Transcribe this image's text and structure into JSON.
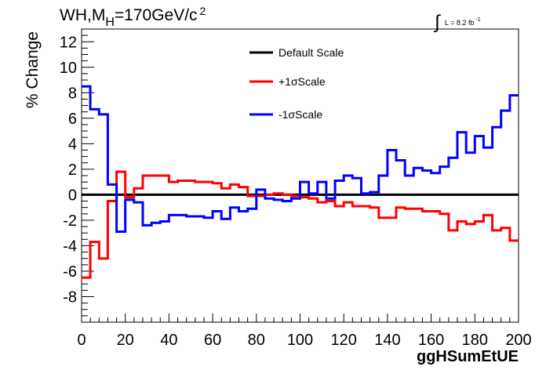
{
  "chart_data": {
    "type": "line",
    "title_parts": {
      "main": "WH,M",
      "sub": "H",
      "rest": "=170GeV/c",
      "sup": "2"
    },
    "lumi_label": "L = 8.2 fb",
    "lumi_sup": "-1",
    "xlabel": "ggHSumEtUE",
    "ylabel": "% Change",
    "xlim": [
      0,
      200
    ],
    "ylim": [
      -10,
      13
    ],
    "x_ticks": [
      0,
      20,
      40,
      60,
      80,
      100,
      120,
      140,
      160,
      180,
      200
    ],
    "x_tick_labels": [
      "0",
      "20",
      "40",
      "60",
      "80",
      "100",
      "120",
      "140",
      "160",
      "180",
      "200"
    ],
    "y_ticks": [
      -8,
      -6,
      -4,
      -2,
      0,
      2,
      4,
      6,
      8,
      10,
      12
    ],
    "y_tick_labels": [
      "-8",
      "-6",
      "-4",
      "-2",
      "0",
      "2",
      "4",
      "6",
      "8",
      "10",
      "12"
    ],
    "bin_edges": [
      0,
      4,
      8,
      12,
      16,
      20,
      24,
      28,
      32,
      36,
      40,
      44,
      48,
      52,
      56,
      60,
      64,
      68,
      72,
      76,
      80,
      84,
      88,
      92,
      96,
      100,
      104,
      108,
      112,
      116,
      120,
      124,
      128,
      132,
      136,
      140,
      144,
      148,
      152,
      156,
      160,
      164,
      168,
      172,
      176,
      180,
      184,
      188,
      192,
      196,
      200
    ],
    "legend": {
      "position": "top-center"
    },
    "series": [
      {
        "name": "Default Scale",
        "color": "#000000",
        "values": [
          0,
          0,
          0,
          0,
          0,
          0,
          0,
          0,
          0,
          0,
          0,
          0,
          0,
          0,
          0,
          0,
          0,
          0,
          0,
          0,
          0,
          0,
          0,
          0,
          0,
          0,
          0,
          0,
          0,
          0,
          0,
          0,
          0,
          0,
          0,
          0,
          0,
          0,
          0,
          0,
          0,
          0,
          0,
          0,
          0,
          0,
          0,
          0,
          0,
          0
        ]
      },
      {
        "name": "+1σScale",
        "color": "#ff0000",
        "values": [
          -6.5,
          -3.7,
          -5.0,
          -0.5,
          1.8,
          -0.2,
          0.5,
          1.5,
          1.5,
          1.5,
          1.0,
          1.1,
          1.1,
          1.0,
          1.0,
          0.9,
          0.5,
          0.8,
          0.6,
          -0.1,
          -0.1,
          0.0,
          0.1,
          0.0,
          -0.1,
          -0.2,
          -0.3,
          -0.6,
          -0.5,
          -0.9,
          -0.6,
          -0.9,
          -0.9,
          -1.0,
          -1.8,
          -1.8,
          -1.0,
          -1.1,
          -1.1,
          -1.3,
          -1.3,
          -1.5,
          -2.8,
          -2.1,
          -2.3,
          -2.1,
          -1.6,
          -2.8,
          -2.6,
          -3.6
        ]
      },
      {
        "name": "-1σScale",
        "color": "#0000ff",
        "values": [
          8.5,
          6.7,
          6.3,
          0.8,
          -2.9,
          -0.4,
          -0.6,
          -2.4,
          -2.2,
          -2.1,
          -1.6,
          -1.6,
          -1.7,
          -1.7,
          -1.8,
          -1.3,
          -1.9,
          -1.0,
          -1.3,
          -1.1,
          0.4,
          -0.3,
          -0.4,
          -0.5,
          -0.3,
          1.0,
          0.1,
          1.0,
          -0.3,
          1.1,
          1.5,
          1.3,
          0.1,
          0.2,
          1.5,
          3.5,
          2.7,
          1.5,
          2.1,
          1.9,
          1.7,
          2.2,
          2.9,
          4.9,
          3.3,
          4.6,
          3.7,
          5.3,
          6.6,
          7.8
        ]
      }
    ]
  }
}
